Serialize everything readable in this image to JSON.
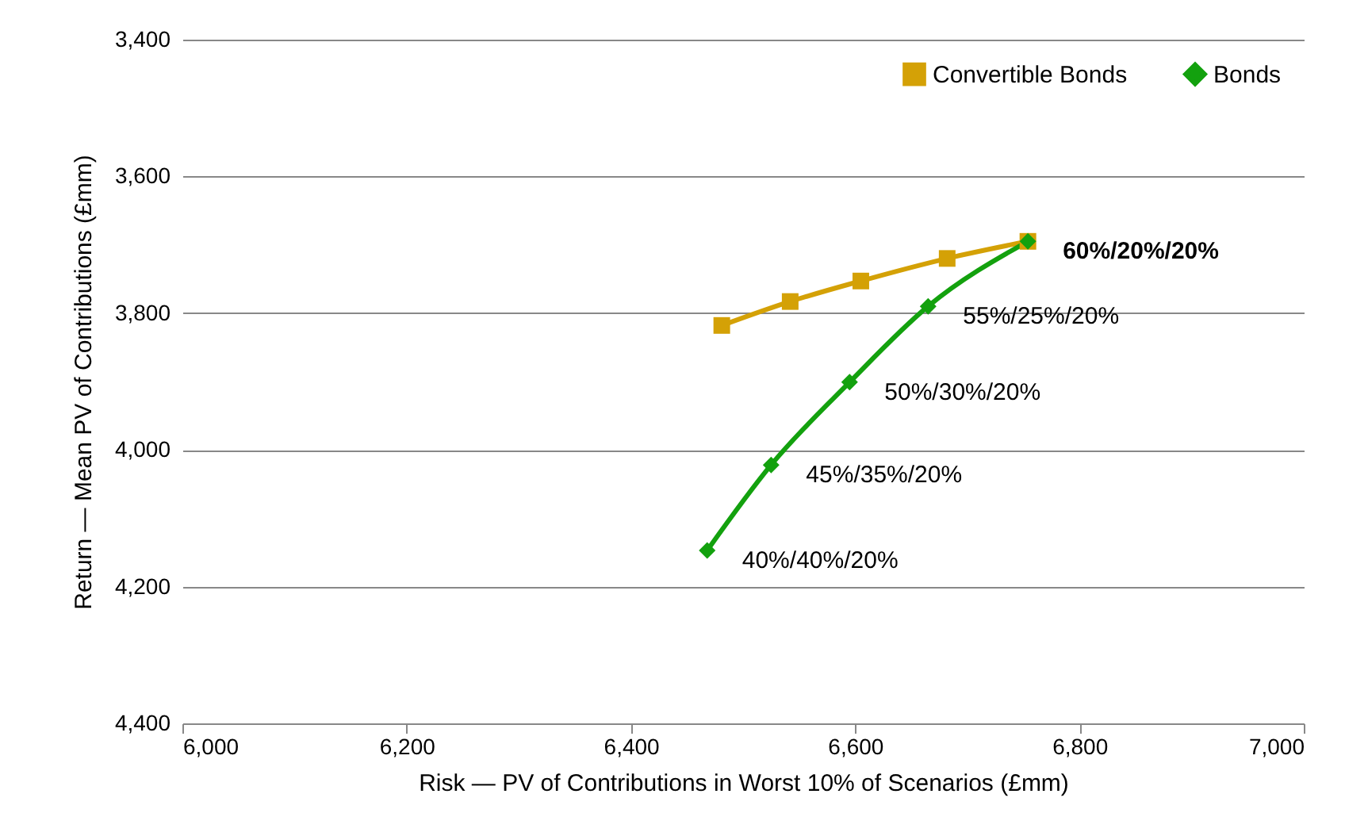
{
  "chart_data": {
    "type": "line",
    "xlabel": "Risk — PV of Contributions in Worst 10% of Scenarios (£mm)",
    "ylabel": "Return — Mean PV of Contributions (£mm)",
    "xlim": [
      6000,
      7000
    ],
    "xticks": [
      {
        "value": 6000,
        "label": "6,000"
      },
      {
        "value": 6200,
        "label": "6,200"
      },
      {
        "value": 6400,
        "label": "6,400"
      },
      {
        "value": 6600,
        "label": "6,600"
      },
      {
        "value": 6800,
        "label": "6,800"
      },
      {
        "value": 7000,
        "label": "7,000"
      }
    ],
    "ylim": [
      4400,
      3400
    ],
    "yticks": [
      {
        "value": 3400,
        "label": "3,400"
      },
      {
        "value": 3600,
        "label": "3,600"
      },
      {
        "value": 3800,
        "label": "3,800"
      },
      {
        "value": 4000,
        "label": "4,000"
      },
      {
        "value": 4200,
        "label": "4,200"
      },
      {
        "value": 4400,
        "label": "4,400"
      }
    ],
    "grid": "y",
    "legend": "top right",
    "line_style": "solid",
    "series": [
      {
        "name": "Convertible Bonds",
        "color": "#d4a106",
        "marker": "square",
        "x": [
          6481,
          6542,
          6605,
          6682,
          6754
        ],
        "values": [
          3818,
          3783,
          3753,
          3720,
          3695
        ]
      },
      {
        "name": "Bonds",
        "color": "#13a10e",
        "marker": "diamond",
        "x": [
          6468,
          6525,
          6595,
          6665,
          6754
        ],
        "values": [
          4147,
          4022,
          3901,
          3790,
          3695
        ]
      }
    ],
    "annotations": [
      {
        "text": "40%/40%/20%",
        "x": 6468,
        "y": 4147
      },
      {
        "text": "45%/35%/20%",
        "x": 6525,
        "y": 4022
      },
      {
        "text": "50%/30%/20%",
        "x": 6595,
        "y": 3901
      },
      {
        "text": "55%/25%/20%",
        "x": 6665,
        "y": 3790
      },
      {
        "text": "60%/20%/20%",
        "x": 6754,
        "y": 3695
      }
    ]
  }
}
